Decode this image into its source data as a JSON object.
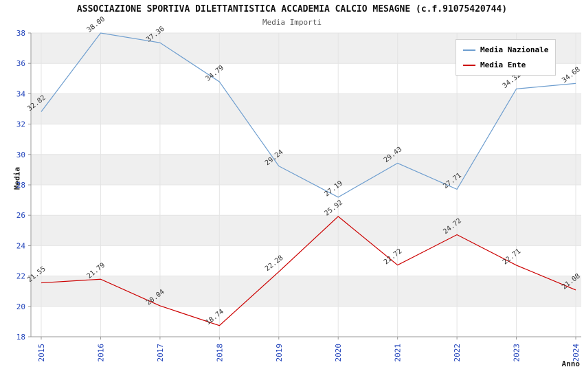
{
  "title": "ASSOCIAZIONE SPORTIVA DILETTANTISTICA ACCADEMIA CALCIO MESAGNE (c.f.91075420744)",
  "subtitle": "Media Importi",
  "chart_data": {
    "type": "line",
    "categories": [
      "2015",
      "2016",
      "2017",
      "2018",
      "2019",
      "2020",
      "2021",
      "2022",
      "2023",
      "2024"
    ],
    "series": [
      {
        "name": "Media Nazionale",
        "color": "#6e9ecf",
        "values": [
          32.82,
          38.0,
          37.36,
          34.79,
          29.24,
          27.19,
          29.43,
          27.71,
          34.32,
          34.68
        ]
      },
      {
        "name": "Media Ente",
        "color": "#cc0000",
        "values": [
          21.55,
          21.79,
          20.04,
          18.74,
          22.28,
          25.92,
          22.72,
          24.72,
          22.71,
          21.08
        ]
      }
    ],
    "xlabel": "Anno",
    "ylabel": "Media",
    "ylim": [
      18,
      38
    ],
    "ytick_step": 2,
    "grid": true,
    "legend_position": "top-right"
  },
  "colors": {
    "axis_tick": "#2244bb",
    "band": "#efefef",
    "grid": "#e4e4e4",
    "axis": "#999999",
    "value_label": "#333333"
  }
}
